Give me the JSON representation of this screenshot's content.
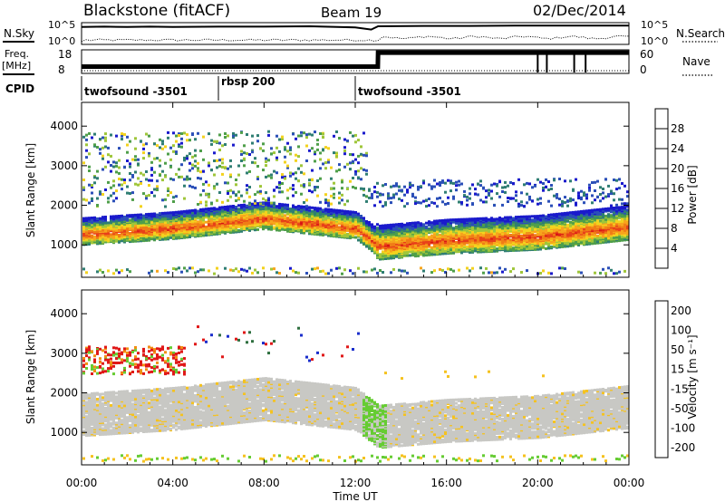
{
  "chart_data": [
    {
      "type": "line",
      "panel": "noise",
      "title": "Blackstone (fitACF)",
      "beam": "Beam 19",
      "date": "02/Dec/2014",
      "left_label": "N.Sky",
      "right_label": "N.Search",
      "left_ticks": [
        "10^5",
        "10^0"
      ],
      "right_ticks": [
        "10^5",
        "10^0"
      ],
      "series": [
        {
          "name": "N.Sky",
          "x": [
            0,
            1,
            2,
            3,
            4,
            6,
            8,
            10,
            12,
            12.7,
            13,
            15,
            17,
            19,
            21,
            23,
            24
          ],
          "values": [
            4.3,
            4.4,
            4.3,
            4.4,
            4.3,
            4.4,
            4.4,
            4.5,
            4.2,
            3.6,
            4.5,
            4.6,
            4.6,
            4.7,
            4.7,
            4.7,
            4.7
          ]
        }
      ]
    },
    {
      "type": "line",
      "panel": "frequency",
      "left_label_1": "Freq.",
      "left_label_2": "[MHz]",
      "left_ticks": [
        "18",
        "8"
      ],
      "right_label": "Nave",
      "right_ticks": [
        "60",
        "0"
      ],
      "series": [
        {
          "name": "Freq.",
          "x": [
            0,
            12.99,
            13,
            24
          ],
          "values": [
            10.5,
            10.5,
            17.5,
            17.5
          ]
        }
      ]
    },
    {
      "type": "table",
      "panel": "cpid",
      "label": "CPID",
      "programs": [
        {
          "name": "twofsound -3501",
          "start": 0,
          "end": 6
        },
        {
          "name": "rbsp 200",
          "start": 6,
          "end": 12
        },
        {
          "name": "twofsound -3501",
          "start": 12,
          "end": 24
        }
      ]
    },
    {
      "type": "heatmap",
      "panel": "power",
      "ylabel": "Slant Range [km]",
      "yticks": [
        1000,
        2000,
        3000,
        4000
      ],
      "ylim": [
        180,
        4600
      ],
      "colorbar_label": "Power [dB]",
      "colorbar_ticks": [
        4,
        8,
        12,
        16,
        20,
        24,
        28
      ],
      "clim": [
        0,
        30
      ],
      "band_range_km": [
        [
          0,
          1300
        ],
        [
          4,
          1450
        ],
        [
          8,
          1700
        ],
        [
          12,
          1450
        ],
        [
          13,
          1000
        ],
        [
          16,
          1150
        ],
        [
          20,
          1250
        ],
        [
          24,
          1500
        ]
      ]
    },
    {
      "type": "heatmap",
      "panel": "velocity",
      "ylabel": "Slant Range [km]",
      "yticks": [
        1000,
        2000,
        3000,
        4000
      ],
      "ylim": [
        180,
        4600
      ],
      "xlabel": "Time UT",
      "xticks": [
        "00:00",
        "04:00",
        "08:00",
        "12:00",
        "16:00",
        "20:00",
        "00:00"
      ],
      "xlim": [
        0,
        24
      ],
      "colorbar_label": "Velocity [m s⁻¹]",
      "colorbar_ticks": [
        200,
        100,
        50,
        15,
        -15,
        -50,
        -100,
        -200
      ]
    }
  ]
}
